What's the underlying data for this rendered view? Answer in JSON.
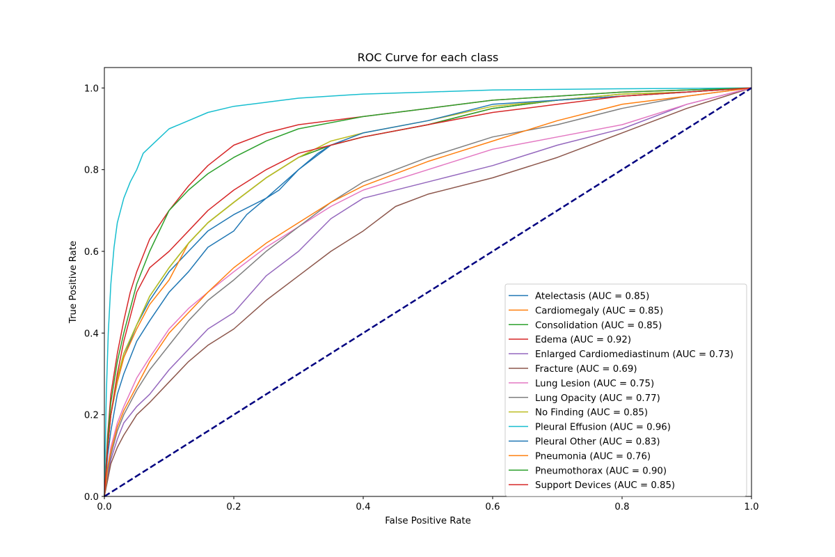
{
  "chart_data": {
    "type": "line",
    "title": "ROC Curve for each class",
    "xlabel": "False Positive Rate",
    "ylabel": "True Positive Rate",
    "xlim": [
      0.0,
      1.0
    ],
    "ylim": [
      0.0,
      1.05
    ],
    "xticks": [
      "0.0",
      "0.2",
      "0.4",
      "0.6",
      "0.8",
      "1.0"
    ],
    "yticks": [
      "0.0",
      "0.2",
      "0.4",
      "0.6",
      "0.8",
      "1.0"
    ],
    "grid": false,
    "legend_position": "lower-right",
    "chance_line": {
      "x": [
        0,
        1
      ],
      "y": [
        0,
        1
      ],
      "color": "#000080",
      "style": "dashed"
    },
    "series": [
      {
        "name": "Atelectasis (AUC = 0.85)",
        "color": "#1f77b4",
        "x": [
          0,
          0.005,
          0.01,
          0.02,
          0.03,
          0.05,
          0.07,
          0.1,
          0.13,
          0.16,
          0.2,
          0.25,
          0.3,
          0.35,
          0.4,
          0.5,
          0.6,
          0.7,
          0.8,
          0.9,
          1.0
        ],
        "y": [
          0,
          0.12,
          0.2,
          0.28,
          0.34,
          0.42,
          0.48,
          0.55,
          0.6,
          0.65,
          0.69,
          0.73,
          0.8,
          0.86,
          0.88,
          0.91,
          0.95,
          0.97,
          0.98,
          0.99,
          1.0
        ]
      },
      {
        "name": "Cardiomegaly (AUC = 0.85)",
        "color": "#ff7f0e",
        "x": [
          0,
          0.005,
          0.01,
          0.02,
          0.03,
          0.05,
          0.07,
          0.1,
          0.13,
          0.16,
          0.2,
          0.25,
          0.3,
          0.35,
          0.4,
          0.5,
          0.6,
          0.7,
          0.8,
          0.9,
          1.0
        ],
        "y": [
          0,
          0.12,
          0.2,
          0.28,
          0.34,
          0.41,
          0.47,
          0.53,
          0.62,
          0.67,
          0.72,
          0.78,
          0.83,
          0.86,
          0.88,
          0.91,
          0.95,
          0.97,
          0.98,
          0.99,
          1.0
        ]
      },
      {
        "name": "Consolidation (AUC = 0.85)",
        "color": "#2ca02c",
        "x": [
          0,
          0.005,
          0.01,
          0.02,
          0.03,
          0.05,
          0.07,
          0.1,
          0.13,
          0.16,
          0.2,
          0.25,
          0.3,
          0.35,
          0.4,
          0.5,
          0.6,
          0.7,
          0.8,
          0.9,
          1.0
        ],
        "y": [
          0,
          0.13,
          0.2,
          0.29,
          0.35,
          0.42,
          0.49,
          0.56,
          0.62,
          0.67,
          0.72,
          0.78,
          0.83,
          0.86,
          0.88,
          0.91,
          0.95,
          0.97,
          0.985,
          0.99,
          1.0
        ]
      },
      {
        "name": "Edema (AUC = 0.92)",
        "color": "#d62728",
        "x": [
          0,
          0.005,
          0.01,
          0.02,
          0.03,
          0.04,
          0.05,
          0.07,
          0.1,
          0.13,
          0.16,
          0.2,
          0.25,
          0.3,
          0.4,
          0.5,
          0.6,
          0.7,
          0.8,
          0.9,
          1.0
        ],
        "y": [
          0,
          0.15,
          0.25,
          0.35,
          0.43,
          0.5,
          0.55,
          0.63,
          0.7,
          0.76,
          0.81,
          0.86,
          0.89,
          0.91,
          0.93,
          0.95,
          0.97,
          0.98,
          0.99,
          0.995,
          1.0
        ]
      },
      {
        "name": "Enlarged Cardiomediastinum (AUC = 0.73)",
        "color": "#9467bd",
        "x": [
          0,
          0.005,
          0.01,
          0.02,
          0.03,
          0.05,
          0.07,
          0.1,
          0.13,
          0.16,
          0.2,
          0.25,
          0.3,
          0.35,
          0.4,
          0.5,
          0.6,
          0.7,
          0.8,
          0.9,
          1.0
        ],
        "y": [
          0,
          0.05,
          0.09,
          0.14,
          0.18,
          0.22,
          0.25,
          0.31,
          0.36,
          0.41,
          0.45,
          0.54,
          0.6,
          0.68,
          0.73,
          0.77,
          0.81,
          0.86,
          0.9,
          0.96,
          1.0
        ]
      },
      {
        "name": "Fracture (AUC = 0.69)",
        "color": "#8c564b",
        "x": [
          0,
          0.005,
          0.01,
          0.02,
          0.03,
          0.05,
          0.07,
          0.1,
          0.13,
          0.16,
          0.2,
          0.25,
          0.3,
          0.35,
          0.4,
          0.45,
          0.5,
          0.6,
          0.7,
          0.8,
          0.9,
          1.0
        ],
        "y": [
          0,
          0.04,
          0.08,
          0.12,
          0.15,
          0.2,
          0.23,
          0.28,
          0.33,
          0.37,
          0.41,
          0.48,
          0.54,
          0.6,
          0.65,
          0.71,
          0.74,
          0.78,
          0.83,
          0.89,
          0.95,
          1.0
        ]
      },
      {
        "name": "Lung Lesion (AUC = 0.75)",
        "color": "#e377c2",
        "x": [
          0,
          0.005,
          0.01,
          0.02,
          0.03,
          0.05,
          0.07,
          0.1,
          0.13,
          0.16,
          0.2,
          0.25,
          0.3,
          0.35,
          0.4,
          0.5,
          0.6,
          0.7,
          0.8,
          0.9,
          1.0
        ],
        "y": [
          0,
          0.07,
          0.12,
          0.18,
          0.22,
          0.29,
          0.34,
          0.41,
          0.46,
          0.5,
          0.55,
          0.61,
          0.66,
          0.71,
          0.75,
          0.8,
          0.85,
          0.88,
          0.91,
          0.96,
          1.0
        ]
      },
      {
        "name": "Lung Opacity (AUC = 0.77)",
        "color": "#7f7f7f",
        "x": [
          0,
          0.005,
          0.01,
          0.02,
          0.03,
          0.05,
          0.07,
          0.1,
          0.13,
          0.16,
          0.2,
          0.25,
          0.3,
          0.35,
          0.4,
          0.5,
          0.6,
          0.7,
          0.8,
          0.9,
          1.0
        ],
        "y": [
          0,
          0.06,
          0.1,
          0.16,
          0.2,
          0.26,
          0.31,
          0.37,
          0.43,
          0.48,
          0.53,
          0.6,
          0.66,
          0.72,
          0.77,
          0.83,
          0.88,
          0.91,
          0.95,
          0.98,
          1.0
        ]
      },
      {
        "name": "No Finding (AUC = 0.85)",
        "color": "#bcbd22",
        "x": [
          0,
          0.005,
          0.01,
          0.02,
          0.03,
          0.05,
          0.07,
          0.1,
          0.13,
          0.16,
          0.2,
          0.25,
          0.3,
          0.35,
          0.4,
          0.5,
          0.6,
          0.7,
          0.8,
          0.9,
          1.0
        ],
        "y": [
          0,
          0.12,
          0.2,
          0.29,
          0.35,
          0.42,
          0.49,
          0.56,
          0.62,
          0.67,
          0.72,
          0.78,
          0.83,
          0.87,
          0.89,
          0.92,
          0.955,
          0.97,
          0.985,
          0.99,
          1.0
        ]
      },
      {
        "name": "Pleural Effusion (AUC = 0.96)",
        "color": "#17becf",
        "x": [
          0,
          0.003,
          0.006,
          0.01,
          0.015,
          0.02,
          0.03,
          0.04,
          0.05,
          0.06,
          0.08,
          0.1,
          0.13,
          0.16,
          0.2,
          0.25,
          0.3,
          0.4,
          0.5,
          0.6,
          0.8,
          1.0
        ],
        "y": [
          0,
          0.25,
          0.4,
          0.52,
          0.61,
          0.67,
          0.73,
          0.77,
          0.8,
          0.84,
          0.87,
          0.9,
          0.92,
          0.94,
          0.955,
          0.965,
          0.975,
          0.985,
          0.99,
          0.995,
          0.998,
          1.0
        ]
      },
      {
        "name": "Pleural Other (AUC = 0.83)",
        "color": "#1f77b4",
        "x": [
          0,
          0.005,
          0.01,
          0.02,
          0.03,
          0.05,
          0.07,
          0.1,
          0.13,
          0.16,
          0.2,
          0.22,
          0.25,
          0.27,
          0.3,
          0.33,
          0.35,
          0.4,
          0.5,
          0.6,
          0.7,
          0.8,
          0.9,
          1.0
        ],
        "y": [
          0,
          0.1,
          0.16,
          0.25,
          0.3,
          0.38,
          0.43,
          0.5,
          0.55,
          0.61,
          0.65,
          0.69,
          0.73,
          0.75,
          0.8,
          0.84,
          0.86,
          0.89,
          0.92,
          0.96,
          0.97,
          0.98,
          0.99,
          1.0
        ]
      },
      {
        "name": "Pneumonia (AUC = 0.76)",
        "color": "#ff7f0e",
        "x": [
          0,
          0.005,
          0.01,
          0.02,
          0.03,
          0.05,
          0.07,
          0.1,
          0.13,
          0.16,
          0.2,
          0.25,
          0.3,
          0.35,
          0.4,
          0.5,
          0.6,
          0.7,
          0.8,
          0.9,
          1.0
        ],
        "y": [
          0,
          0.07,
          0.11,
          0.17,
          0.21,
          0.27,
          0.33,
          0.4,
          0.45,
          0.5,
          0.56,
          0.62,
          0.67,
          0.72,
          0.76,
          0.82,
          0.87,
          0.92,
          0.96,
          0.98,
          1.0
        ]
      },
      {
        "name": "Pneumothorax (AUC = 0.90)",
        "color": "#2ca02c",
        "x": [
          0,
          0.005,
          0.01,
          0.02,
          0.03,
          0.04,
          0.05,
          0.07,
          0.1,
          0.13,
          0.16,
          0.2,
          0.25,
          0.3,
          0.4,
          0.5,
          0.6,
          0.7,
          0.8,
          0.9,
          1.0
        ],
        "y": [
          0,
          0.14,
          0.23,
          0.33,
          0.4,
          0.46,
          0.52,
          0.6,
          0.7,
          0.75,
          0.79,
          0.83,
          0.87,
          0.9,
          0.93,
          0.95,
          0.97,
          0.98,
          0.99,
          0.995,
          1.0
        ]
      },
      {
        "name": "Support Devices (AUC = 0.85)",
        "color": "#d62728",
        "x": [
          0,
          0.005,
          0.01,
          0.02,
          0.03,
          0.05,
          0.07,
          0.1,
          0.13,
          0.16,
          0.2,
          0.25,
          0.3,
          0.35,
          0.4,
          0.5,
          0.6,
          0.7,
          0.8,
          0.9,
          1.0
        ],
        "y": [
          0,
          0.12,
          0.2,
          0.3,
          0.38,
          0.5,
          0.56,
          0.6,
          0.65,
          0.7,
          0.75,
          0.8,
          0.84,
          0.86,
          0.88,
          0.91,
          0.94,
          0.96,
          0.98,
          0.99,
          1.0
        ]
      }
    ]
  }
}
